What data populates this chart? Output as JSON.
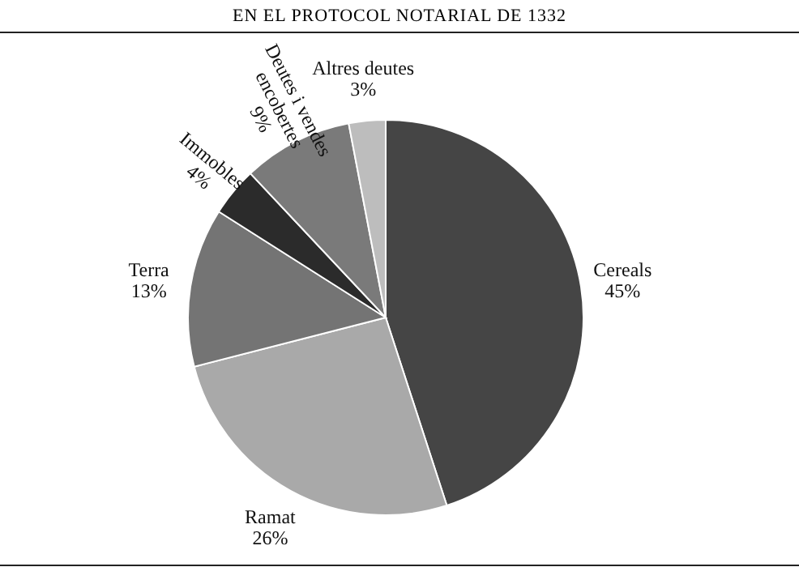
{
  "chart_data": {
    "type": "pie",
    "title": "EN EL PROTOCOL NOTARIAL DE 1332",
    "categories": [
      "Cereals",
      "Ramat",
      "Terra",
      "Immobles",
      "Deutes i vendes encobertes",
      "Altres deutes"
    ],
    "values": [
      45,
      26,
      13,
      4,
      9,
      3
    ],
    "colors": [
      "#454545",
      "#a9a9a9",
      "#747474",
      "#2b2b2b",
      "#7a7a7a",
      "#bdbdbd"
    ],
    "value_labels": [
      "45%",
      "26%",
      "13%",
      "4%",
      "9%",
      "3%"
    ]
  }
}
